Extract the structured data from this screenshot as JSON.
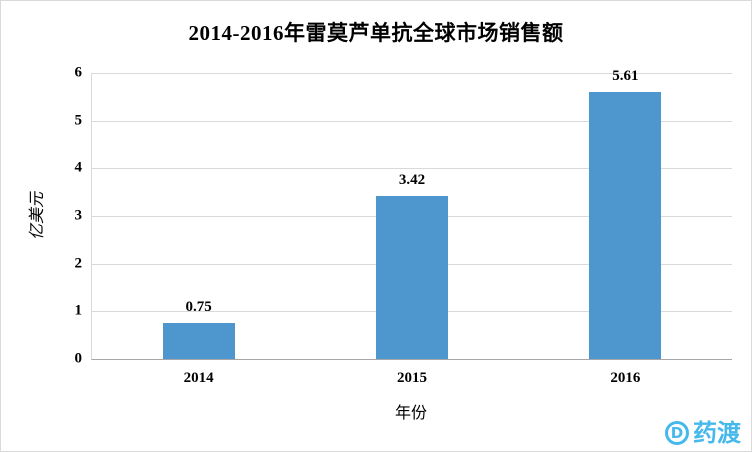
{
  "chart_data": {
    "type": "bar",
    "title": "2014-2016年雷莫芦单抗全球市场销售额",
    "categories": [
      "2014",
      "2015",
      "2016"
    ],
    "values": [
      0.75,
      3.42,
      5.61
    ],
    "value_labels": [
      "0.75",
      "3.42",
      "5.61"
    ],
    "xlabel": "年份",
    "ylabel": "亿美元",
    "ylim": [
      0,
      6
    ],
    "ytick_interval": 1,
    "yticks": [
      "0",
      "1",
      "2",
      "3",
      "4",
      "5",
      "6"
    ],
    "grid": true,
    "legend": "none",
    "bar_color": "#4e96ce"
  },
  "watermark": {
    "text": "药渡",
    "icon_letter": "D",
    "color": "#45b8ec"
  }
}
